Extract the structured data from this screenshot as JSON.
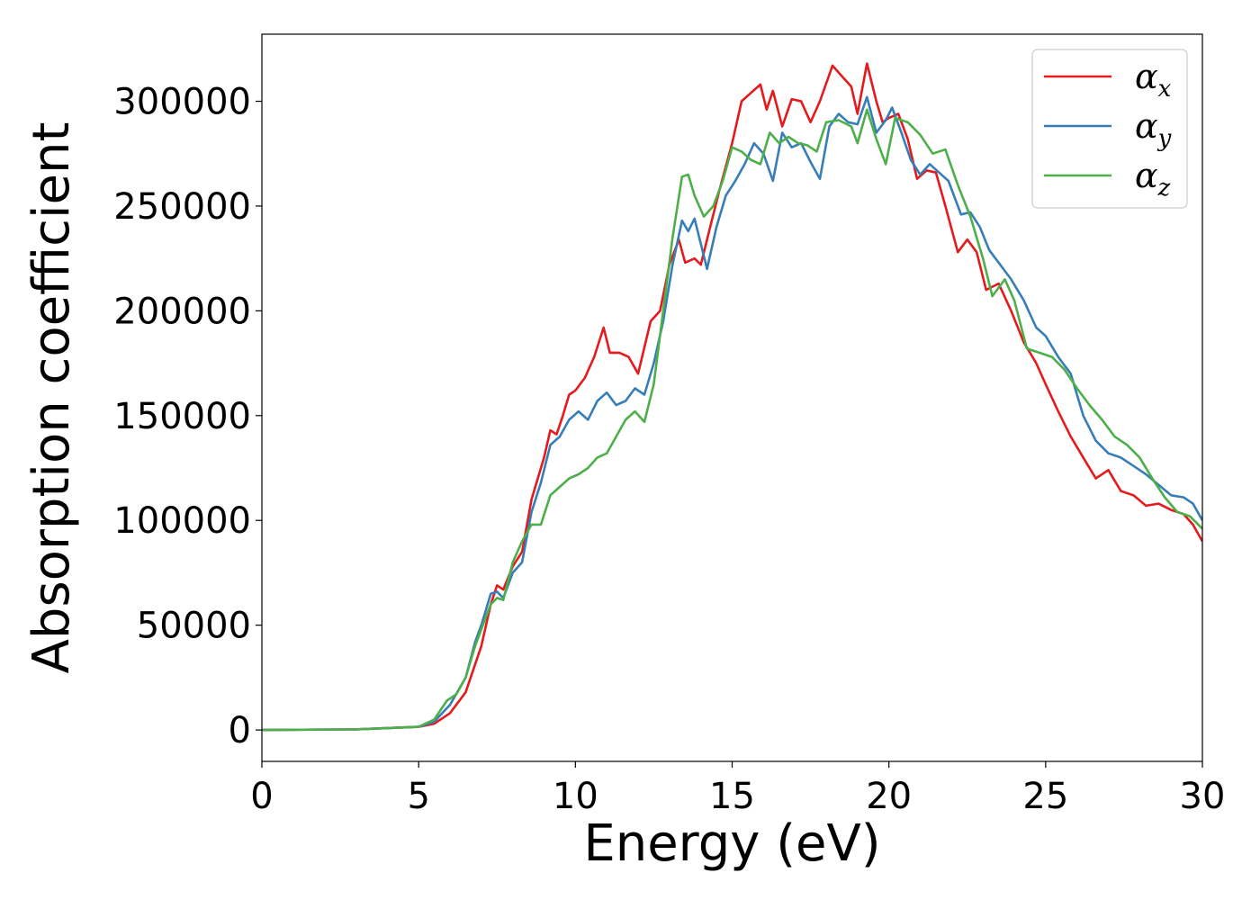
{
  "chart_data": {
    "type": "line",
    "xlabel": "Energy (eV)",
    "ylabel": "Absorption coefficient",
    "xlim": [
      0,
      30
    ],
    "ylim": [
      -15000,
      332000
    ],
    "xticks": [
      0,
      5,
      10,
      15,
      20,
      25,
      30
    ],
    "xtick_labels": [
      "0",
      "5",
      "10",
      "15",
      "20",
      "25",
      "30"
    ],
    "yticks": [
      0,
      50000,
      100000,
      150000,
      200000,
      250000,
      300000
    ],
    "ytick_labels": [
      "0",
      "50000",
      "100000",
      "150000",
      "200000",
      "250000",
      "300000"
    ],
    "grid": false,
    "legend": {
      "position": "top-right",
      "entries": [
        {
          "symbol": "α",
          "sub": "x",
          "color": "#e41a1c"
        },
        {
          "symbol": "α",
          "sub": "y",
          "color": "#377eb8"
        },
        {
          "symbol": "α",
          "sub": "z",
          "color": "#4daf4a"
        }
      ]
    },
    "series": [
      {
        "name": "αx",
        "color": "#e41a1c",
        "points": [
          [
            0,
            0
          ],
          [
            3,
            300
          ],
          [
            5,
            1500
          ],
          [
            5.5,
            3000
          ],
          [
            6,
            8000
          ],
          [
            6.5,
            18000
          ],
          [
            7,
            40000
          ],
          [
            7.3,
            60000
          ],
          [
            7.5,
            69000
          ],
          [
            7.7,
            67000
          ],
          [
            8,
            78000
          ],
          [
            8.3,
            85000
          ],
          [
            8.6,
            110000
          ],
          [
            9,
            130000
          ],
          [
            9.2,
            143000
          ],
          [
            9.4,
            141000
          ],
          [
            9.6,
            150000
          ],
          [
            9.8,
            160000
          ],
          [
            10,
            162000
          ],
          [
            10.3,
            168000
          ],
          [
            10.6,
            178000
          ],
          [
            10.9,
            192000
          ],
          [
            11.1,
            180000
          ],
          [
            11.4,
            180000
          ],
          [
            11.7,
            178000
          ],
          [
            12,
            170000
          ],
          [
            12.4,
            195000
          ],
          [
            12.7,
            200000
          ],
          [
            13,
            222000
          ],
          [
            13.3,
            234000
          ],
          [
            13.5,
            223000
          ],
          [
            13.8,
            225000
          ],
          [
            14,
            222000
          ],
          [
            14.3,
            240000
          ],
          [
            14.6,
            258000
          ],
          [
            15,
            280000
          ],
          [
            15.3,
            300000
          ],
          [
            15.6,
            304000
          ],
          [
            15.9,
            308000
          ],
          [
            16.1,
            296000
          ],
          [
            16.3,
            305000
          ],
          [
            16.6,
            288000
          ],
          [
            16.9,
            301000
          ],
          [
            17.2,
            300000
          ],
          [
            17.5,
            290000
          ],
          [
            17.8,
            300000
          ],
          [
            18.2,
            317000
          ],
          [
            18.5,
            312000
          ],
          [
            18.8,
            307000
          ],
          [
            19,
            294000
          ],
          [
            19.3,
            318000
          ],
          [
            19.6,
            300000
          ],
          [
            19.8,
            290000
          ],
          [
            20,
            292000
          ],
          [
            20.3,
            294000
          ],
          [
            20.6,
            282000
          ],
          [
            20.9,
            263000
          ],
          [
            21.2,
            267000
          ],
          [
            21.5,
            266000
          ],
          [
            21.8,
            250000
          ],
          [
            22.2,
            228000
          ],
          [
            22.5,
            234000
          ],
          [
            22.8,
            228000
          ],
          [
            23.1,
            210000
          ],
          [
            23.5,
            213000
          ],
          [
            23.9,
            200000
          ],
          [
            24.3,
            185000
          ],
          [
            24.7,
            175000
          ],
          [
            25,
            165000
          ],
          [
            25.4,
            152000
          ],
          [
            25.8,
            140000
          ],
          [
            26.2,
            130000
          ],
          [
            26.6,
            120000
          ],
          [
            27,
            124000
          ],
          [
            27.4,
            114000
          ],
          [
            27.8,
            112000
          ],
          [
            28.2,
            107000
          ],
          [
            28.6,
            108000
          ],
          [
            29,
            105000
          ],
          [
            29.4,
            103000
          ],
          [
            29.7,
            98000
          ],
          [
            30,
            90000
          ]
        ]
      },
      {
        "name": "αy",
        "color": "#377eb8",
        "points": [
          [
            0,
            0
          ],
          [
            3,
            300
          ],
          [
            5,
            1500
          ],
          [
            5.5,
            4000
          ],
          [
            6,
            12000
          ],
          [
            6.5,
            25000
          ],
          [
            6.8,
            42000
          ],
          [
            7,
            50000
          ],
          [
            7.3,
            65000
          ],
          [
            7.5,
            66000
          ],
          [
            7.7,
            63000
          ],
          [
            8,
            75000
          ],
          [
            8.3,
            80000
          ],
          [
            8.6,
            104000
          ],
          [
            8.9,
            118000
          ],
          [
            9.2,
            136000
          ],
          [
            9.5,
            140000
          ],
          [
            9.8,
            148000
          ],
          [
            10.1,
            152000
          ],
          [
            10.4,
            148000
          ],
          [
            10.7,
            157000
          ],
          [
            11,
            161000
          ],
          [
            11.3,
            155000
          ],
          [
            11.6,
            157000
          ],
          [
            11.9,
            163000
          ],
          [
            12.2,
            160000
          ],
          [
            12.5,
            175000
          ],
          [
            12.8,
            195000
          ],
          [
            13.1,
            222000
          ],
          [
            13.4,
            243000
          ],
          [
            13.6,
            238000
          ],
          [
            13.8,
            244000
          ],
          [
            14,
            232000
          ],
          [
            14.2,
            220000
          ],
          [
            14.5,
            240000
          ],
          [
            14.8,
            255000
          ],
          [
            15.1,
            262000
          ],
          [
            15.4,
            270000
          ],
          [
            15.7,
            280000
          ],
          [
            16,
            275000
          ],
          [
            16.3,
            262000
          ],
          [
            16.6,
            285000
          ],
          [
            16.9,
            278000
          ],
          [
            17.2,
            280000
          ],
          [
            17.5,
            271000
          ],
          [
            17.8,
            263000
          ],
          [
            18.1,
            288000
          ],
          [
            18.4,
            294000
          ],
          [
            18.7,
            290000
          ],
          [
            19,
            289000
          ],
          [
            19.3,
            302000
          ],
          [
            19.6,
            285000
          ],
          [
            19.9,
            291000
          ],
          [
            20.1,
            297000
          ],
          [
            20.4,
            285000
          ],
          [
            20.7,
            272000
          ],
          [
            21,
            265000
          ],
          [
            21.3,
            270000
          ],
          [
            21.6,
            266000
          ],
          [
            21.9,
            262000
          ],
          [
            22.3,
            246000
          ],
          [
            22.6,
            247000
          ],
          [
            22.9,
            240000
          ],
          [
            23.2,
            229000
          ],
          [
            23.5,
            223000
          ],
          [
            23.9,
            215000
          ],
          [
            24.3,
            205000
          ],
          [
            24.7,
            192000
          ],
          [
            25,
            188000
          ],
          [
            25.4,
            178000
          ],
          [
            25.8,
            170000
          ],
          [
            26.2,
            150000
          ],
          [
            26.6,
            138000
          ],
          [
            27,
            132000
          ],
          [
            27.4,
            130000
          ],
          [
            27.8,
            126000
          ],
          [
            28.2,
            122000
          ],
          [
            28.6,
            117000
          ],
          [
            29,
            112000
          ],
          [
            29.4,
            111000
          ],
          [
            29.7,
            108000
          ],
          [
            30,
            100000
          ]
        ]
      },
      {
        "name": "αz",
        "color": "#4daf4a",
        "points": [
          [
            0,
            0
          ],
          [
            3,
            300
          ],
          [
            5,
            1500
          ],
          [
            5.5,
            5000
          ],
          [
            5.9,
            14000
          ],
          [
            6.2,
            17000
          ],
          [
            6.5,
            25000
          ],
          [
            6.8,
            40000
          ],
          [
            7,
            48000
          ],
          [
            7.3,
            60000
          ],
          [
            7.5,
            63000
          ],
          [
            7.7,
            62000
          ],
          [
            8,
            80000
          ],
          [
            8.3,
            90000
          ],
          [
            8.6,
            98000
          ],
          [
            8.9,
            98000
          ],
          [
            9.2,
            112000
          ],
          [
            9.5,
            116000
          ],
          [
            9.8,
            120000
          ],
          [
            10.1,
            122000
          ],
          [
            10.4,
            125000
          ],
          [
            10.7,
            130000
          ],
          [
            11,
            132000
          ],
          [
            11.3,
            140000
          ],
          [
            11.6,
            148000
          ],
          [
            11.9,
            152000
          ],
          [
            12.2,
            147000
          ],
          [
            12.5,
            165000
          ],
          [
            12.8,
            200000
          ],
          [
            13.1,
            235000
          ],
          [
            13.4,
            264000
          ],
          [
            13.6,
            265000
          ],
          [
            13.8,
            255000
          ],
          [
            14.1,
            245000
          ],
          [
            14.4,
            250000
          ],
          [
            14.7,
            262000
          ],
          [
            15,
            278000
          ],
          [
            15.3,
            276000
          ],
          [
            15.6,
            272000
          ],
          [
            15.9,
            270000
          ],
          [
            16.2,
            285000
          ],
          [
            16.5,
            280000
          ],
          [
            16.8,
            283000
          ],
          [
            17.1,
            280000
          ],
          [
            17.4,
            279000
          ],
          [
            17.7,
            276000
          ],
          [
            18,
            290000
          ],
          [
            18.4,
            291000
          ],
          [
            18.8,
            288000
          ],
          [
            19,
            280000
          ],
          [
            19.3,
            296000
          ],
          [
            19.6,
            282000
          ],
          [
            19.9,
            270000
          ],
          [
            20.2,
            292000
          ],
          [
            20.6,
            290000
          ],
          [
            21,
            284000
          ],
          [
            21.4,
            275000
          ],
          [
            21.8,
            277000
          ],
          [
            22.2,
            260000
          ],
          [
            22.6,
            245000
          ],
          [
            23,
            225000
          ],
          [
            23.3,
            207000
          ],
          [
            23.7,
            215000
          ],
          [
            24,
            205000
          ],
          [
            24.4,
            182000
          ],
          [
            24.8,
            180000
          ],
          [
            25.2,
            178000
          ],
          [
            25.6,
            172000
          ],
          [
            26,
            163000
          ],
          [
            26.4,
            155000
          ],
          [
            26.8,
            148000
          ],
          [
            27.2,
            140000
          ],
          [
            27.6,
            136000
          ],
          [
            28,
            130000
          ],
          [
            28.4,
            120000
          ],
          [
            28.8,
            111000
          ],
          [
            29.2,
            104000
          ],
          [
            29.6,
            102000
          ],
          [
            30,
            96000
          ]
        ]
      }
    ]
  }
}
